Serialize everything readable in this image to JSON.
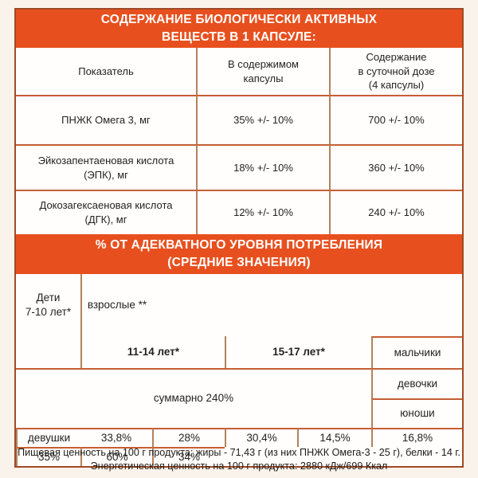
{
  "theme": {
    "bg": "#FAF3EB",
    "cell": "#FFFEFC",
    "orange": "#E7501E",
    "text": "#262220",
    "border-outer": "#A04A26",
    "border-h": "#C55E34",
    "border-v": "#B2825C"
  },
  "section1": {
    "title": "СОДЕРЖАНИЕ БИОЛОГИЧЕСКИ АКТИВНЫХ\nВЕЩЕСТВ В 1 КАПСУЛЕ:",
    "columns": {
      "indicator": "Показатель",
      "per_capsule": "В содержимом\nкапсулы",
      "daily_dose": "Содержание\nв суточной дозе\n(4 капсулы)"
    },
    "rows": [
      {
        "name": "ПНЖК Омега 3, мг",
        "per_capsule": "35% +/- 10%",
        "daily_dose": "700 +/- 10%"
      },
      {
        "name": "Эйкозапентаеновая кислота\n(ЭПК), мг",
        "per_capsule": "18% +/- 10%",
        "daily_dose": "360 +/- 10%"
      },
      {
        "name": "Докозагексаеновая кислота\n(ДГК), мг",
        "per_capsule": "12% +/- 10%",
        "daily_dose": "240 +/- 10%"
      }
    ]
  },
  "section2": {
    "title": "% ОТ АДЕКВАТНОГО УРОВНЯ ПОТРЕБЛЕНИЯ\n(СРЕДНИЕ ЗНАЧЕНИЯ)",
    "headers": {
      "children": "Дети\n7-10 лет*",
      "group_11_14": "11-14 лет*",
      "boys": "мальчики",
      "girls": "девочки",
      "group_15_17": "15-17 лет*",
      "young_men": "юноши",
      "young_women": "девушки",
      "adults": "взрослые **"
    },
    "values": {
      "children": "33,8%",
      "boys": "28%",
      "girls": "30,4%",
      "young_men": "14,5%",
      "young_women": "16,8%",
      "adults": "35%"
    },
    "summary": "суммарно 240%",
    "adults_extra": [
      "60%",
      "34%"
    ]
  },
  "footer": {
    "line1": "Пищевая ценность на 100 г продукта: жиры - 71,43 г (из них ПНЖК Омега-3 - 25 г), белки - 14 г.",
    "line2": "Энергетическая ценность на 100 г продукта: 2880 кДж/699 Ккал"
  }
}
